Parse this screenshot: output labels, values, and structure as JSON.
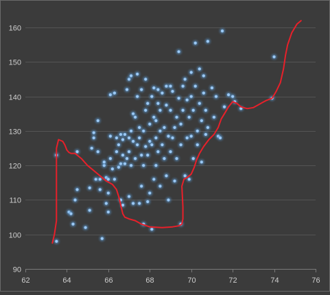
{
  "chart_data": {
    "type": "scatter",
    "title": "",
    "xlabel": "",
    "ylabel": "",
    "xlim": [
      62,
      76
    ],
    "ylim": [
      90,
      165
    ],
    "x_ticks": [
      "62",
      "64",
      "66",
      "68",
      "70",
      "72",
      "74",
      "76"
    ],
    "y_ticks": [
      "90",
      "100",
      "110",
      "120",
      "130",
      "140",
      "150",
      "160"
    ],
    "grid": "horizontal",
    "legend": "none",
    "colors": {
      "background": "#3b3b3b",
      "gridline": "#545454",
      "axis": "#7a7a7a",
      "point": "#9cc9f5",
      "point_glow": "#5b9bd5",
      "annotation": "#e8202a"
    },
    "series": [
      {
        "points": [
          [
            63.5,
            98
          ],
          [
            63.5,
            123
          ],
          [
            64.1,
            106.5
          ],
          [
            64.2,
            106
          ],
          [
            64.3,
            103
          ],
          [
            64.4,
            110
          ],
          [
            64.5,
            113
          ],
          [
            64.5,
            124
          ],
          [
            64.9,
            102
          ],
          [
            65.1,
            107
          ],
          [
            65.1,
            113.5
          ],
          [
            65.2,
            125
          ],
          [
            65.3,
            128
          ],
          [
            65.3,
            129.5
          ],
          [
            65.4,
            116
          ],
          [
            65.5,
            124
          ],
          [
            65.5,
            133
          ],
          [
            65.6,
            113
          ],
          [
            65.6,
            116
          ],
          [
            65.7,
            98.8
          ],
          [
            65.8,
            120
          ],
          [
            65.8,
            121
          ],
          [
            65.9,
            109
          ],
          [
            65.9,
            116.5
          ],
          [
            66.0,
            106.5
          ],
          [
            66.0,
            112
          ],
          [
            66.0,
            116
          ],
          [
            66.1,
            140.5
          ],
          [
            66.1,
            128.5
          ],
          [
            66.1,
            122
          ],
          [
            66.2,
            119
          ],
          [
            66.3,
            116
          ],
          [
            66.3,
            141
          ],
          [
            66.4,
            124
          ],
          [
            66.4,
            128
          ],
          [
            66.5,
            126
          ],
          [
            66.5,
            119.5
          ],
          [
            66.6,
            120.5
          ],
          [
            66.6,
            129
          ],
          [
            66.6,
            110
          ],
          [
            66.7,
            123
          ],
          [
            66.7,
            127.5
          ],
          [
            66.7,
            108.5
          ],
          [
            66.8,
            120.5
          ],
          [
            66.8,
            129
          ],
          [
            66.9,
            142
          ],
          [
            66.9,
            122
          ],
          [
            67.0,
            124
          ],
          [
            67.0,
            145
          ],
          [
            67.0,
            128
          ],
          [
            67.0,
            111
          ],
          [
            67.1,
            130
          ],
          [
            67.1,
            146
          ],
          [
            67.1,
            120
          ],
          [
            67.2,
            135
          ],
          [
            67.2,
            127
          ],
          [
            67.2,
            109
          ],
          [
            67.3,
            122
          ],
          [
            67.3,
            134
          ],
          [
            67.4,
            140
          ],
          [
            67.4,
            126
          ],
          [
            67.4,
            146.5
          ],
          [
            67.5,
            131
          ],
          [
            67.5,
            128
          ],
          [
            67.5,
            109
          ],
          [
            67.6,
            142
          ],
          [
            67.6,
            123
          ],
          [
            67.6,
            114
          ],
          [
            67.7,
            130
          ],
          [
            67.7,
            120
          ],
          [
            67.7,
            103
          ],
          [
            67.8,
            145
          ],
          [
            67.8,
            136
          ],
          [
            67.8,
            125.5
          ],
          [
            67.9,
            123
          ],
          [
            67.9,
            138
          ],
          [
            67.9,
            109.5
          ],
          [
            68.0,
            132
          ],
          [
            68.0,
            127
          ],
          [
            68.0,
            112
          ],
          [
            68.1,
            140
          ],
          [
            68.1,
            126
          ],
          [
            68.1,
            101.5
          ],
          [
            68.2,
            142.5
          ],
          [
            68.2,
            134
          ],
          [
            68.2,
            116
          ],
          [
            68.3,
            133
          ],
          [
            68.3,
            128
          ],
          [
            68.3,
            120
          ],
          [
            68.4,
            138
          ],
          [
            68.4,
            142
          ],
          [
            68.4,
            124
          ],
          [
            68.5,
            130
          ],
          [
            68.5,
            114
          ],
          [
            68.5,
            136
          ],
          [
            68.6,
            141
          ],
          [
            68.6,
            126
          ],
          [
            68.7,
            131
          ],
          [
            68.7,
            122
          ],
          [
            68.8,
            143
          ],
          [
            68.8,
            137.5
          ],
          [
            68.8,
            117
          ],
          [
            68.9,
            128.5
          ],
          [
            68.9,
            110
          ],
          [
            69.0,
            136
          ],
          [
            69.0,
            124
          ],
          [
            69.0,
            143
          ],
          [
            69.1,
            141.5
          ],
          [
            69.1,
            128
          ],
          [
            69.2,
            131
          ],
          [
            69.2,
            115.5
          ],
          [
            69.3,
            134
          ],
          [
            69.3,
            122
          ],
          [
            69.4,
            139.5
          ],
          [
            69.4,
            153
          ],
          [
            69.5,
            132
          ],
          [
            69.5,
            126
          ],
          [
            69.5,
            103
          ],
          [
            69.6,
            143
          ],
          [
            69.6,
            136
          ],
          [
            69.7,
            117
          ],
          [
            69.7,
            145
          ],
          [
            69.8,
            128
          ],
          [
            69.8,
            139
          ],
          [
            69.9,
            134
          ],
          [
            69.9,
            116
          ],
          [
            70.0,
            147
          ],
          [
            70.0,
            140
          ],
          [
            70.0,
            128.5
          ],
          [
            70.1,
            122
          ],
          [
            70.1,
            136
          ],
          [
            70.2,
            155.5
          ],
          [
            70.2,
            143
          ],
          [
            70.3,
            130
          ],
          [
            70.3,
            126
          ],
          [
            70.4,
            148
          ],
          [
            70.4,
            138
          ],
          [
            70.5,
            133
          ],
          [
            70.5,
            121
          ],
          [
            70.6,
            146
          ],
          [
            70.6,
            141
          ],
          [
            70.7,
            129
          ],
          [
            70.7,
            136
          ],
          [
            70.8,
            156
          ],
          [
            70.8,
            131
          ],
          [
            71.0,
            142.5
          ],
          [
            71.1,
            134
          ],
          [
            71.2,
            140
          ],
          [
            71.3,
            128.5
          ],
          [
            71.4,
            128
          ],
          [
            71.5,
            159
          ],
          [
            71.6,
            137
          ],
          [
            71.8,
            140.5
          ],
          [
            72.0,
            140
          ],
          [
            72.1,
            138.5
          ],
          [
            72.4,
            136.5
          ],
          [
            73.9,
            139.5
          ],
          [
            74.0,
            151.5
          ]
        ]
      }
    ],
    "annotation_path": [
      [
        63.3,
        97.5
      ],
      [
        63.4,
        100
      ],
      [
        63.5,
        104
      ],
      [
        63.5,
        112
      ],
      [
        63.5,
        120
      ],
      [
        63.5,
        125
      ],
      [
        63.6,
        127.5
      ],
      [
        63.8,
        127
      ],
      [
        63.9,
        126
      ],
      [
        64.0,
        124.5
      ],
      [
        64.1,
        123.8
      ],
      [
        64.2,
        123.5
      ],
      [
        64.4,
        123.5
      ],
      [
        64.7,
        122
      ],
      [
        65.0,
        120
      ],
      [
        65.3,
        118.5
      ],
      [
        65.6,
        117
      ],
      [
        65.9,
        115.5
      ],
      [
        66.2,
        114.5
      ],
      [
        66.4,
        113
      ],
      [
        66.5,
        111
      ],
      [
        66.6,
        108.5
      ],
      [
        66.7,
        106
      ],
      [
        66.8,
        105
      ],
      [
        67.0,
        104.5
      ],
      [
        67.3,
        104
      ],
      [
        67.6,
        103
      ],
      [
        68.0,
        102.2
      ],
      [
        68.6,
        102
      ],
      [
        69.1,
        102.2
      ],
      [
        69.4,
        102.5
      ],
      [
        69.55,
        103
      ],
      [
        69.6,
        104.5
      ],
      [
        69.6,
        108
      ],
      [
        69.55,
        114
      ],
      [
        69.65,
        116
      ],
      [
        69.8,
        116.5
      ],
      [
        70.0,
        117.5
      ],
      [
        70.15,
        119.5
      ],
      [
        70.25,
        121.5
      ],
      [
        70.4,
        123.5
      ],
      [
        70.6,
        125.5
      ],
      [
        70.85,
        127.5
      ],
      [
        71.1,
        129
      ],
      [
        71.3,
        131
      ],
      [
        71.45,
        133.5
      ],
      [
        71.6,
        135
      ],
      [
        71.8,
        137
      ],
      [
        72.0,
        138.5
      ],
      [
        72.2,
        138
      ],
      [
        72.4,
        137
      ],
      [
        72.7,
        136.5
      ],
      [
        73.0,
        136.8
      ],
      [
        73.3,
        137.8
      ],
      [
        73.6,
        138.8
      ],
      [
        73.9,
        139.5
      ],
      [
        74.1,
        141.5
      ],
      [
        74.3,
        144
      ],
      [
        74.45,
        148
      ],
      [
        74.55,
        152
      ],
      [
        74.65,
        155
      ],
      [
        74.85,
        158.5
      ],
      [
        75.1,
        161
      ],
      [
        75.3,
        162
      ]
    ]
  }
}
